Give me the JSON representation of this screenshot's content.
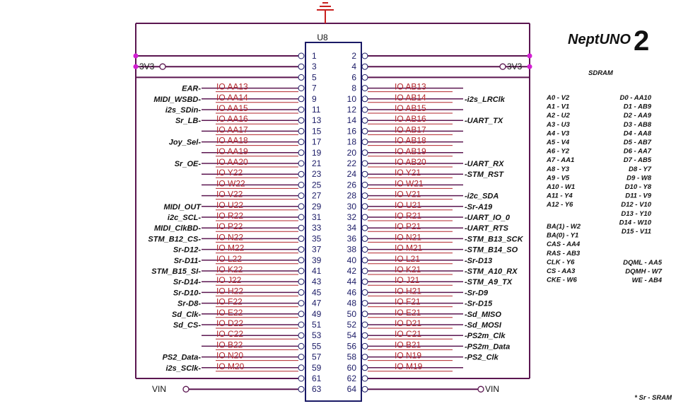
{
  "header": {
    "logo_text": "NeptUNO",
    "logo_suffix": "2",
    "component_ref": "U8"
  },
  "power": {
    "left_rail": "3V3",
    "right_rail": "3V3",
    "vin_left": "VIN",
    "vin_right": "VIN"
  },
  "sdram": {
    "title": "SDRAM",
    "address": [
      "A0 - V2",
      "A1 - V1",
      "A2 - U2",
      "A3 - U3",
      "A4 - V3",
      "A5 - V4",
      "A6 - Y2",
      "A7 - AA1",
      "A8 - Y3",
      "A9 - V5",
      "A10 - W1",
      "A11 - Y4",
      "A12 - Y6"
    ],
    "data": [
      "D0 - AA10",
      "D1 - AB9",
      "D2 - AA9",
      "D3 - AB8",
      "D4 - AA8",
      "D5 - AB7",
      "D6 - AA7",
      "D7 - AB5",
      "D8 - Y7",
      "D9 - W8",
      "D10 - Y8",
      "D11 - V9",
      "D12 - V10",
      "D13 - Y10",
      "D14 - W10",
      "D15 - V11"
    ],
    "control": [
      "BA(1) - W2",
      "BA(0) - Y1",
      "CAS - AA4",
      "RAS - AB3",
      "CLK - Y6",
      "CS - AA3",
      "CKE - W6"
    ],
    "misc": [
      "DQML - AA5",
      "DQMH - W7",
      "WE - AB4"
    ]
  },
  "footnote": "* Sr - SRAM",
  "odd_pins": [
    "1",
    "3",
    "5",
    "7",
    "9",
    "11",
    "13",
    "15",
    "17",
    "19",
    "21",
    "23",
    "25",
    "27",
    "29",
    "31",
    "33",
    "35",
    "37",
    "39",
    "41",
    "43",
    "45",
    "47",
    "49",
    "51",
    "53",
    "55",
    "57",
    "59",
    "61",
    "63"
  ],
  "even_pins": [
    "2",
    "4",
    "6",
    "8",
    "10",
    "12",
    "14",
    "16",
    "18",
    "20",
    "22",
    "24",
    "26",
    "28",
    "30",
    "32",
    "34",
    "36",
    "38",
    "40",
    "42",
    "44",
    "46",
    "48",
    "50",
    "52",
    "54",
    "56",
    "58",
    "60",
    "62",
    "64"
  ],
  "left_io": [
    "IO AA13",
    "IO AA14",
    "IO AA15",
    "IO AA16",
    "IO AA17",
    "IO AA18",
    "IO AA19",
    "IO AA20",
    "IO Y22",
    "IO W22",
    "IO V22",
    "IO U22",
    "IO R22",
    "IO P22",
    "IO N22",
    "IO M22",
    "IO L22",
    "IO K22",
    "IO J22",
    "IO H22",
    "IO F22",
    "IO E22",
    "IO D22",
    "IO C22",
    "IO B22",
    "IO N20",
    "IO M20"
  ],
  "right_io": [
    "IO AB13",
    "IO AB14",
    "IO AB15",
    "IO AB16",
    "IO AB17",
    "IO AB18",
    "IO AB19",
    "IO AB20",
    "IO Y21",
    "IO W21",
    "IO V21",
    "IO U21",
    "IO R21",
    "IO P21",
    "IO N21",
    "IO M21",
    "IO L21",
    "IO K21",
    "IO J21",
    "IO H21",
    "IO F21",
    "IO E21",
    "IO D21",
    "IO C21",
    "IO B21",
    "IO N19",
    "IO M19"
  ],
  "left_signals": [
    {
      "pin": "7",
      "label": "EAR-"
    },
    {
      "pin": "9",
      "label": "MIDI_WSBD-"
    },
    {
      "pin": "11",
      "label": "i2s_SDin-"
    },
    {
      "pin": "13",
      "label": "Sr_LB-"
    },
    {
      "pin": "17",
      "label": "Joy_Sel-"
    },
    {
      "pin": "21",
      "label": "Sr_OE-"
    },
    {
      "pin": "29",
      "label": "MIDI_OUT"
    },
    {
      "pin": "31",
      "label": "i2c_SCL-"
    },
    {
      "pin": "33",
      "label": "MIDI_ClkBD-"
    },
    {
      "pin": "35",
      "label": "STM_B12_CS-"
    },
    {
      "pin": "37",
      "label": "Sr-D12-"
    },
    {
      "pin": "39",
      "label": "Sr-D11-"
    },
    {
      "pin": "41",
      "label": "STM_B15_SI-"
    },
    {
      "pin": "43",
      "label": "Sr-D14-"
    },
    {
      "pin": "45",
      "label": "Sr-D10-"
    },
    {
      "pin": "47",
      "label": "Sr-D8-"
    },
    {
      "pin": "49",
      "label": "Sd_Clk-"
    },
    {
      "pin": "51",
      "label": "Sd_CS-"
    },
    {
      "pin": "57",
      "label": "PS2_Data-"
    },
    {
      "pin": "59",
      "label": "i2s_SClk-"
    }
  ],
  "right_signals": [
    {
      "pin": "10",
      "label": "-i2s_LRClk"
    },
    {
      "pin": "14",
      "label": "-UART_TX"
    },
    {
      "pin": "22",
      "label": "-UART_RX"
    },
    {
      "pin": "24",
      "label": "-STM_RST"
    },
    {
      "pin": "28",
      "label": "-i2c_SDA"
    },
    {
      "pin": "30",
      "label": "-Sr-A19"
    },
    {
      "pin": "32",
      "label": "-UART_IO_0"
    },
    {
      "pin": "34",
      "label": "-UART_RTS"
    },
    {
      "pin": "36",
      "label": "-STM_B13_SCK"
    },
    {
      "pin": "38",
      "label": "-STM_B14_SO"
    },
    {
      "pin": "40",
      "label": "-Sr-D13"
    },
    {
      "pin": "42",
      "label": "-STM_A10_RX"
    },
    {
      "pin": "44",
      "label": "-STM_A9_TX"
    },
    {
      "pin": "46",
      "label": "-Sr-D9"
    },
    {
      "pin": "48",
      "label": "-Sr-D15"
    },
    {
      "pin": "50",
      "label": "-Sd_MISO"
    },
    {
      "pin": "52",
      "label": "-Sd_MOSI"
    },
    {
      "pin": "54",
      "label": "-PS2m_Clk"
    },
    {
      "pin": "56",
      "label": "-PS2m_Data"
    },
    {
      "pin": "58",
      "label": "-PS2_Clk"
    }
  ],
  "colors": {
    "wire": "#5b1650",
    "io_line": "#b3262b",
    "node": "#d21fd2",
    "ground": "#c8201e",
    "box": "#1a1a66"
  }
}
